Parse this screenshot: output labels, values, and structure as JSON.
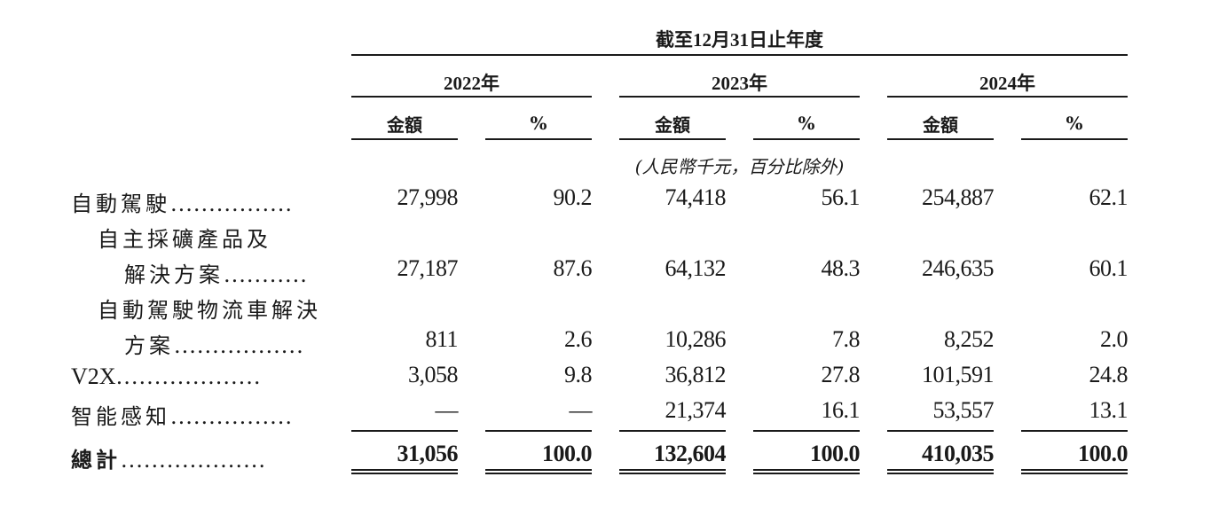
{
  "header": {
    "period": "截至12月31日止年度",
    "years": [
      "2022年",
      "2023年",
      "2024年"
    ],
    "col_amount": "金額",
    "col_pct": "%",
    "unit_note": "(人民幣千元，百分比除外)"
  },
  "rows": [
    {
      "label": "自動駕駛",
      "dots": "................",
      "values": [
        "27,998",
        "90.2",
        "74,418",
        "56.1",
        "254,887",
        "62.1"
      ]
    },
    {
      "label": "自主採礦產品及",
      "dots": "",
      "values": [
        "",
        "",
        "",
        "",
        "",
        ""
      ]
    },
    {
      "label": "解決方案",
      "dots": "...........",
      "values": [
        "27,187",
        "87.6",
        "64,132",
        "48.3",
        "246,635",
        "60.1"
      ]
    },
    {
      "label": "自動駕駛物流車解決",
      "dots": "",
      "values": [
        "",
        "",
        "",
        "",
        "",
        ""
      ]
    },
    {
      "label": "方案",
      "dots": ".................",
      "values": [
        "811",
        "2.6",
        "10,286",
        "7.8",
        "8,252",
        "2.0"
      ]
    },
    {
      "label": "V2X",
      "dots": "...................",
      "values": [
        "3,058",
        "9.8",
        "36,812",
        "27.8",
        "101,591",
        "24.8"
      ]
    },
    {
      "label": "智能感知",
      "dots": "................",
      "values": [
        "—",
        "—",
        "21,374",
        "16.1",
        "53,557",
        "13.1"
      ]
    }
  ],
  "total": {
    "label": "總計",
    "dots": "...................",
    "values": [
      "31,056",
      "100.0",
      "132,604",
      "100.0",
      "410,035",
      "100.0"
    ]
  }
}
